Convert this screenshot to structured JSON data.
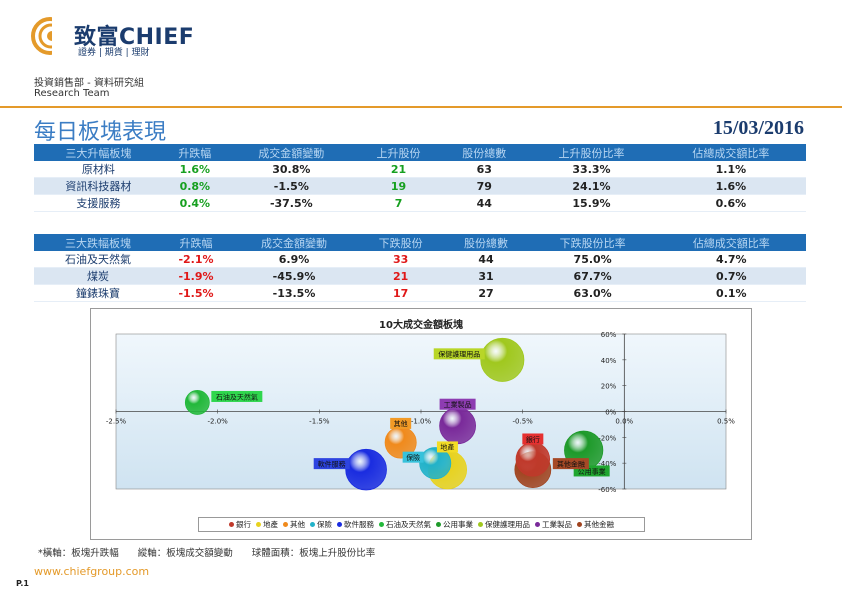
{
  "header": {
    "brand": "致富CHIEF",
    "tagline": "證券 | 期貨 | 理財",
    "department": "投資銷售部 - 資料研究組",
    "team": "Research Team",
    "colors": {
      "rule": "#e49a2a",
      "brand": "#1b3c6e",
      "title": "#3b7dc4"
    }
  },
  "title": "每日板塊表現",
  "date": "15/03/2016",
  "gainers": {
    "columns": [
      "三大升幅板塊",
      "升跌幅",
      "成交金額變動",
      "上升股份",
      "股份總數",
      "上升股份比率",
      "佔總成交額比率"
    ],
    "rows": [
      [
        "原材料",
        "1.6%",
        "30.8%",
        "21",
        "63",
        "33.3%",
        "1.1%"
      ],
      [
        "資訊科技器材",
        "0.8%",
        "-1.5%",
        "19",
        "79",
        "24.1%",
        "1.6%"
      ],
      [
        "支援服務",
        "0.4%",
        "-37.5%",
        "7",
        "44",
        "15.9%",
        "0.6%"
      ]
    ]
  },
  "losers": {
    "columns": [
      "三大跌幅板塊",
      "升跌幅",
      "成交金額變動",
      "下跌股份",
      "股份總數",
      "下跌股份比率",
      "佔總成交額比率"
    ],
    "rows": [
      [
        "石油及天然氣",
        "-2.1%",
        "6.9%",
        "33",
        "44",
        "75.0%",
        "4.7%"
      ],
      [
        "煤炭",
        "-1.9%",
        "-45.9%",
        "21",
        "31",
        "67.7%",
        "0.7%"
      ],
      [
        "鐘錶珠寶",
        "-1.5%",
        "-13.5%",
        "17",
        "27",
        "63.0%",
        "0.1%"
      ]
    ]
  },
  "chart_data": {
    "type": "scatter",
    "title": "10大成交金額板塊",
    "x_ticks": [
      "-2.5%",
      "-2.0%",
      "-1.5%",
      "-1.0%",
      "-0.5%",
      "0.0%",
      "0.5%"
    ],
    "y_ticks": [
      "60%",
      "40%",
      "20%",
      "0%",
      "-20%",
      "-40%",
      "-60%"
    ],
    "xlim": [
      -2.5,
      0.5
    ],
    "ylim": [
      -60,
      60
    ],
    "series": [
      {
        "name": "銀行",
        "x": -0.45,
        "y": -37,
        "size": 0.45,
        "color": "#c0392b",
        "label_bg": "#e53030",
        "label_pos": "above"
      },
      {
        "name": "地產",
        "x": -0.87,
        "y": -45,
        "size": 0.55,
        "color": "#e8d21e",
        "label_bg": "#f3dc25",
        "label_pos": "above"
      },
      {
        "name": "其他",
        "x": -1.1,
        "y": -24,
        "size": 0.4,
        "color": "#f08a1c",
        "label_bg": "#f29a26",
        "label_pos": "above"
      },
      {
        "name": "保險",
        "x": -0.93,
        "y": -40,
        "size": 0.4,
        "color": "#22b2c9",
        "label_bg": "#36c2db",
        "label_pos": "left"
      },
      {
        "name": "軟件服務",
        "x": -1.27,
        "y": -45,
        "size": 0.6,
        "color": "#1a2ce0",
        "label_bg": "#2d44e0",
        "label_pos": "left"
      },
      {
        "name": "石油及天然氣",
        "x": -2.1,
        "y": 7,
        "size": 0.25,
        "color": "#22b83a",
        "label_bg": "#2fd64d",
        "label_pos": "right"
      },
      {
        "name": "公用事業",
        "x": -0.2,
        "y": -30,
        "size": 0.55,
        "color": "#1e9a2a",
        "label_bg": "#1fa62f",
        "label_pos": "below"
      },
      {
        "name": "保健護理用品",
        "x": -0.6,
        "y": 40,
        "size": 0.65,
        "color": "#a0c81e",
        "label_bg": "#b8d627",
        "label_pos": "left"
      },
      {
        "name": "工業製品",
        "x": -0.82,
        "y": -11,
        "size": 0.5,
        "color": "#7a2a9a",
        "label_bg": "#8d3cb1",
        "label_pos": "above"
      },
      {
        "name": "其他金融",
        "x": -0.45,
        "y": -45,
        "size": 0.5,
        "color": "#a0431e",
        "label_bg": "#a64926",
        "label_pos": "right"
      }
    ],
    "colors": {
      "plot_bg_top": "#f0f7fc",
      "plot_bg_bottom": "#cfe3f1",
      "axis": "#444"
    }
  },
  "footnote": "*橫軸：板塊升跌幅　　縱軸：板塊成交額變動　　球體面積：板塊上升股份比率",
  "website": "www.chiefgroup.com",
  "page": "P.1"
}
